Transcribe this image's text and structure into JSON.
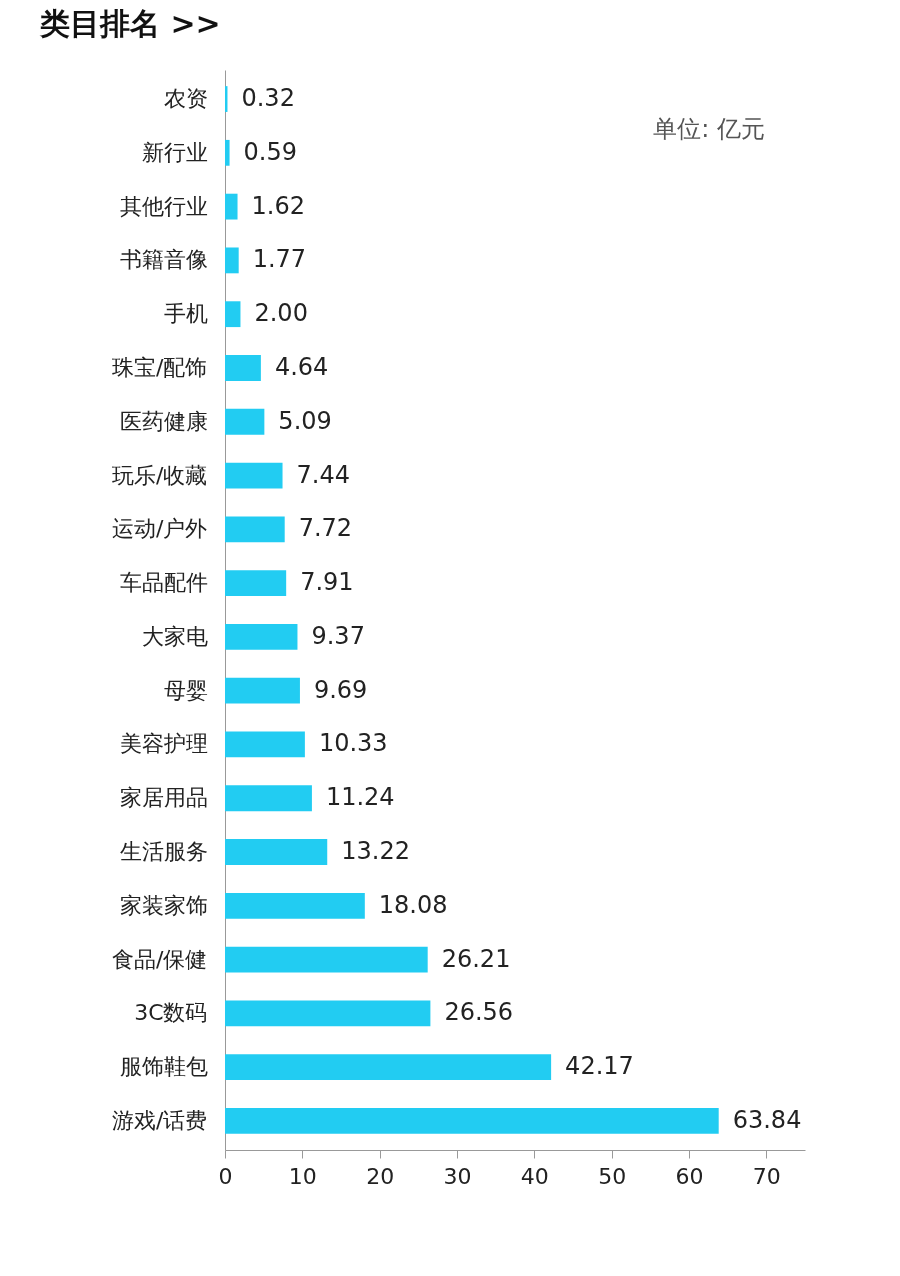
{
  "chart_data": {
    "type": "bar",
    "orientation": "horizontal",
    "title": "类目排名 >>",
    "annotations": [
      "单位: 亿元"
    ],
    "categories": [
      "农资",
      "新行业",
      "其他行业",
      "书籍音像",
      "手机",
      "珠宝/配饰",
      "医药健康",
      "玩乐/收藏",
      "运动/户外",
      "车品配件",
      "大家电",
      "母婴",
      "美容护理",
      "家居用品",
      "生活服务",
      "家装家饰",
      "食品/保健",
      "3C数码",
      "服饰鞋包",
      "游戏/话费"
    ],
    "values": [
      0.32,
      0.59,
      1.62,
      1.77,
      2.0,
      4.64,
      5.09,
      7.44,
      7.72,
      7.91,
      9.37,
      9.69,
      10.33,
      11.24,
      13.22,
      18.08,
      26.21,
      26.56,
      42.17,
      63.84
    ],
    "value_labels": [
      "0.32",
      "0.59",
      "1.62",
      "1.77",
      "2.00",
      "4.64",
      "5.09",
      "7.44",
      "7.72",
      "7.91",
      "9.37",
      "9.69",
      "10.33",
      "11.24",
      "13.22",
      "18.08",
      "26.21",
      "26.56",
      "42.17",
      "63.84"
    ],
    "color": "#22ccf2",
    "xlim": [
      0,
      75
    ],
    "xticks": [
      0,
      10,
      20,
      30,
      40,
      50,
      60,
      70
    ]
  }
}
